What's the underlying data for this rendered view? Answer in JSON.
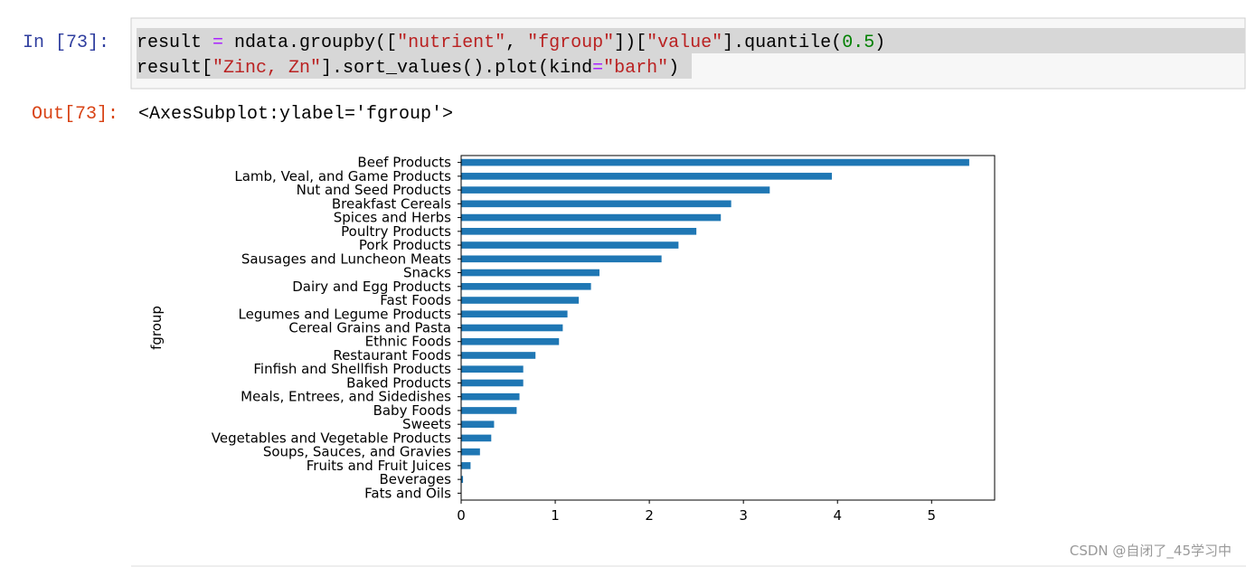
{
  "cell": {
    "in_prompt": "In  [73]:",
    "out_prompt": "Out[73]:",
    "code": [
      [
        {
          "text": "result ",
          "color": "#000000"
        },
        {
          "text": "=",
          "color": "#aa22ff"
        },
        {
          "text": " ndata.groupby([",
          "color": "#000000"
        },
        {
          "text": "\"nutrient\"",
          "color": "#ba2121"
        },
        {
          "text": ", ",
          "color": "#000000"
        },
        {
          "text": "\"fgroup\"",
          "color": "#ba2121"
        },
        {
          "text": "])[",
          "color": "#000000"
        },
        {
          "text": "\"value\"",
          "color": "#ba2121"
        },
        {
          "text": "].quantile(",
          "color": "#000000"
        },
        {
          "text": "0.5",
          "color": "#008000"
        },
        {
          "text": ")",
          "color": "#000000"
        }
      ],
      [
        {
          "text": "result[",
          "color": "#000000"
        },
        {
          "text": "\"Zinc, Zn\"",
          "color": "#ba2121"
        },
        {
          "text": "].sort_values().plot(kind",
          "color": "#000000"
        },
        {
          "text": "=",
          "color": "#aa22ff"
        },
        {
          "text": "\"barh\"",
          "color": "#ba2121"
        },
        {
          "text": ")",
          "color": "#000000"
        }
      ]
    ],
    "output_text": "<AxesSubplot:ylabel='fgroup'>"
  },
  "chart_data": {
    "type": "barh",
    "y_label": "fgroup",
    "color": "#1f77b4",
    "categories": [
      "Fats and Oils",
      "Beverages",
      "Fruits and Fruit Juices",
      "Soups, Sauces, and Gravies",
      "Vegetables and Vegetable Products",
      "Sweets",
      "Baby Foods",
      "Meals, Entrees, and Sidedishes",
      "Baked Products",
      "Finfish and Shellfish Products",
      "Restaurant Foods",
      "Ethnic Foods",
      "Cereal Grains and Pasta",
      "Legumes and Legume Products",
      "Fast Foods",
      "Dairy and Egg Products",
      "Snacks",
      "Sausages and Luncheon Meats",
      "Pork Products",
      "Poultry Products",
      "Spices and Herbs",
      "Breakfast Cereals",
      "Nut and Seed Products",
      "Lamb, Veal, and Game Products",
      "Beef Products"
    ],
    "values": [
      0,
      0.02,
      0.1,
      0.2,
      0.32,
      0.35,
      0.59,
      0.62,
      0.66,
      0.66,
      0.79,
      1.04,
      1.08,
      1.13,
      1.25,
      1.38,
      1.47,
      2.13,
      2.31,
      2.5,
      2.76,
      2.87,
      3.28,
      3.94,
      5.4
    ],
    "xlim": [
      0,
      5.67
    ],
    "xticks": [
      0,
      1,
      2,
      3,
      4,
      5
    ]
  },
  "watermark": "CSDN @自闭了_45学习中"
}
